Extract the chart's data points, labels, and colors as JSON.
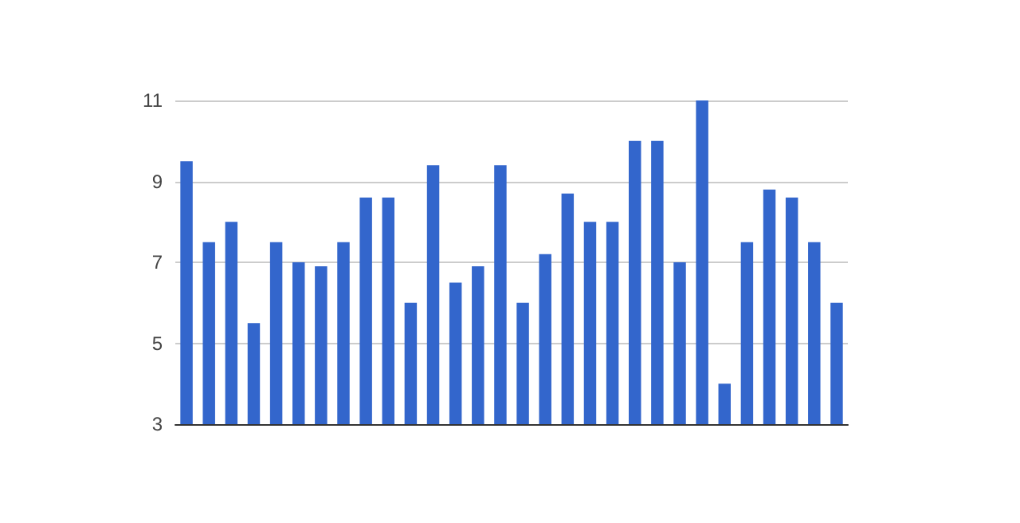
{
  "chart_data": {
    "type": "bar",
    "categories": [
      null,
      null,
      null,
      null,
      null,
      null,
      null,
      null,
      null,
      null,
      null,
      null,
      null,
      null,
      null,
      null,
      null,
      null,
      null,
      null,
      null,
      null,
      null,
      null,
      null,
      null,
      null,
      null,
      null,
      null
    ],
    "values": [
      9.5,
      7.5,
      8,
      5.5,
      7.5,
      7,
      6.9,
      7.5,
      8.6,
      8.6,
      6,
      9.4,
      6.5,
      6.9,
      9.4,
      6,
      7.2,
      8.7,
      8,
      8,
      10,
      10,
      7,
      11,
      4,
      7.5,
      8.8,
      8.6,
      7.5,
      6
    ],
    "color": "#3366cc",
    "ylim": [
      3,
      11
    ],
    "yticks": [
      3,
      5,
      7,
      9,
      11
    ],
    "grid": "y"
  }
}
